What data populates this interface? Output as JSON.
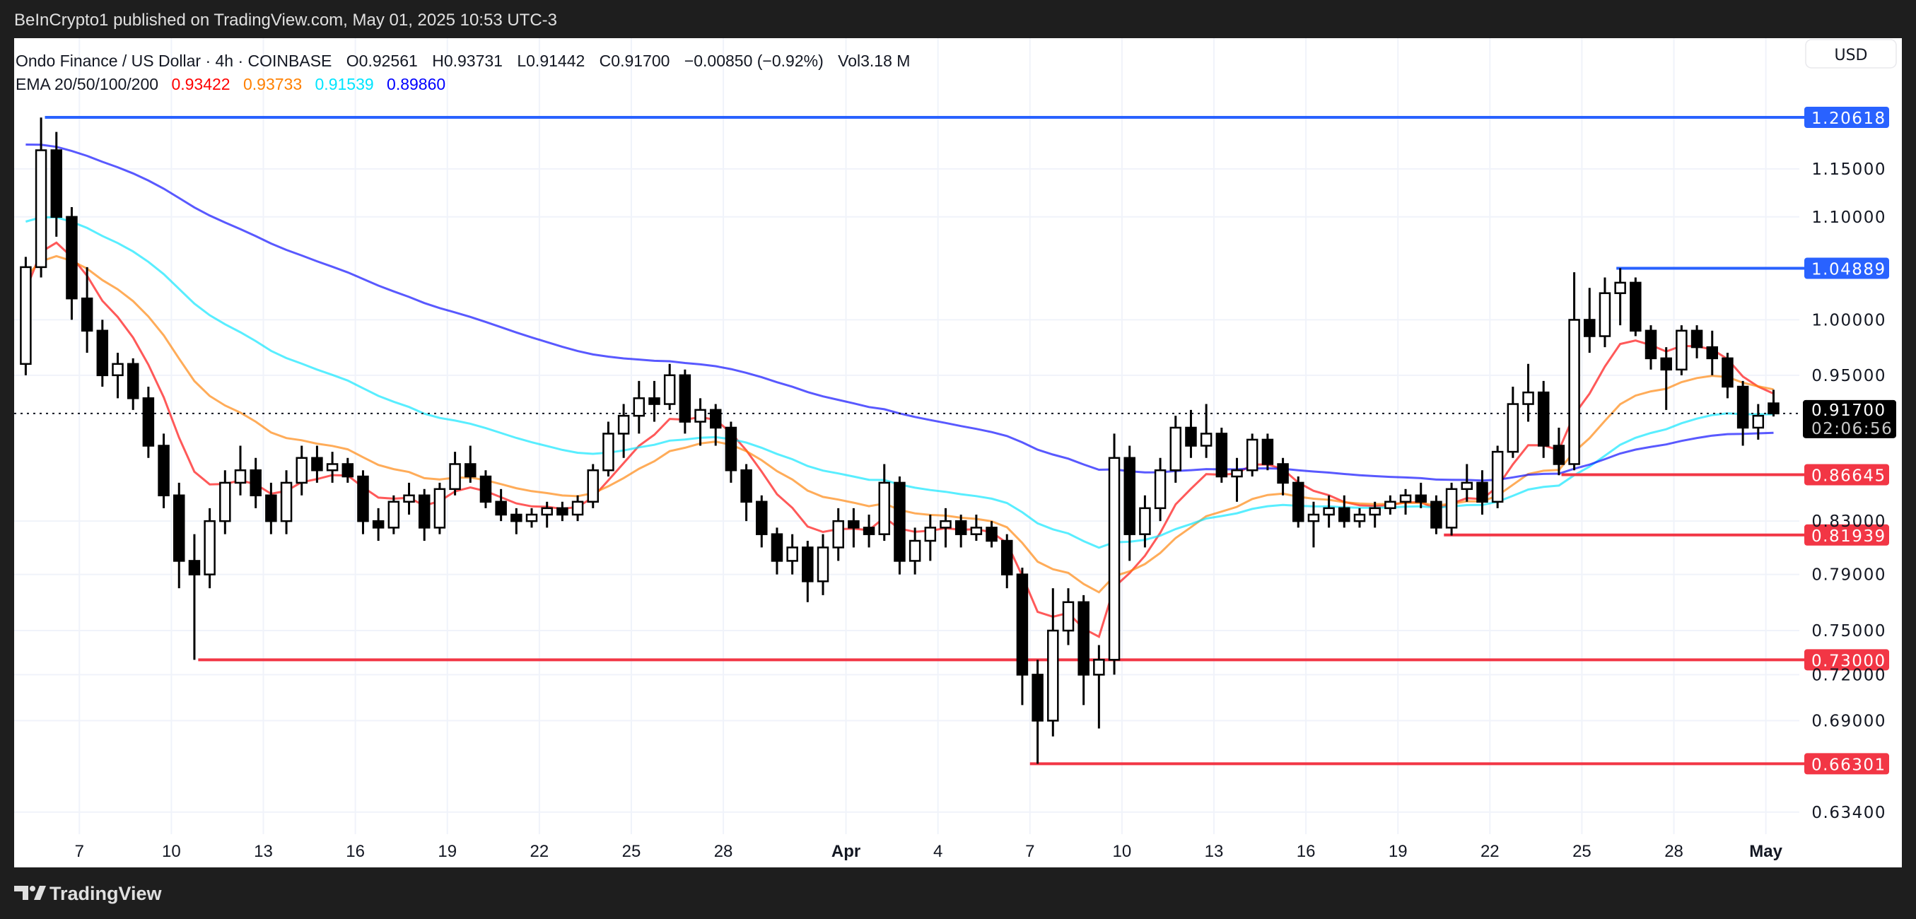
{
  "top_bar": {
    "published": "BeInCrypto1 published on TradingView.com, May 01, 2025 10:53 UTC-3"
  },
  "legend": {
    "symbol": "Ondo Finance / US Dollar · 4h · COINBASE",
    "open": "O0.92561",
    "high": "H0.93731",
    "low": "L0.91442",
    "close": "C0.91700",
    "change": "−0.00850 (−0.92%)",
    "volume": "Vol3.18 M",
    "ema_label": "EMA 20/50/100/200",
    "ema_values": [
      "0.93422",
      "0.93733",
      "0.91539",
      "0.89860"
    ]
  },
  "currency_button": "USD",
  "footer": {
    "brand": "TradingView"
  },
  "current_price": {
    "price": "0.91700",
    "countdown": "02:06:56"
  },
  "colors": {
    "up_body": "#ffffff",
    "down_body": "#000000",
    "support": "#f23645",
    "resistance": "#2962ff",
    "grid": "#f0f3fa"
  },
  "chart_data": {
    "type": "candlestick",
    "scale": "log",
    "grid": true,
    "timeframe": "4h",
    "ylim": [
      0.634,
      1.20618
    ],
    "start_date": "2025-03-05",
    "bar_interval_hours": 12,
    "y_ticks": [
      "1.15000",
      "1.10000",
      "1.00000",
      "0.95000",
      "0.83000",
      "0.79000",
      "0.75000",
      "0.72000",
      "0.69000",
      "0.63400"
    ],
    "x_ticks": [
      {
        "label": "7",
        "date": "2025-03-07"
      },
      {
        "label": "10",
        "date": "2025-03-10"
      },
      {
        "label": "13",
        "date": "2025-03-13"
      },
      {
        "label": "16",
        "date": "2025-03-16"
      },
      {
        "label": "19",
        "date": "2025-03-19"
      },
      {
        "label": "22",
        "date": "2025-03-22"
      },
      {
        "label": "25",
        "date": "2025-03-25"
      },
      {
        "label": "28",
        "date": "2025-03-28"
      },
      {
        "label": "Apr",
        "date": "2025-04-01"
      },
      {
        "label": "4",
        "date": "2025-04-04"
      },
      {
        "label": "7",
        "date": "2025-04-07"
      },
      {
        "label": "10",
        "date": "2025-04-10"
      },
      {
        "label": "13",
        "date": "2025-04-13"
      },
      {
        "label": "16",
        "date": "2025-04-16"
      },
      {
        "label": "19",
        "date": "2025-04-19"
      },
      {
        "label": "22",
        "date": "2025-04-22"
      },
      {
        "label": "25",
        "date": "2025-04-25"
      },
      {
        "label": "28",
        "date": "2025-04-28"
      },
      {
        "label": "May",
        "date": "2025-05-01"
      }
    ],
    "ohlc": [
      [
        0.96,
        1.06,
        0.95,
        1.05
      ],
      [
        1.05,
        1.206,
        1.04,
        1.17
      ],
      [
        1.17,
        1.19,
        1.08,
        1.1
      ],
      [
        1.1,
        1.11,
        1.0,
        1.02
      ],
      [
        1.02,
        1.05,
        0.97,
        0.99
      ],
      [
        0.99,
        1.0,
        0.94,
        0.95
      ],
      [
        0.95,
        0.97,
        0.93,
        0.96
      ],
      [
        0.96,
        0.965,
        0.92,
        0.93
      ],
      [
        0.93,
        0.94,
        0.88,
        0.89
      ],
      [
        0.89,
        0.9,
        0.84,
        0.85
      ],
      [
        0.85,
        0.86,
        0.78,
        0.8
      ],
      [
        0.8,
        0.82,
        0.73,
        0.79
      ],
      [
        0.79,
        0.84,
        0.78,
        0.83
      ],
      [
        0.83,
        0.87,
        0.82,
        0.86
      ],
      [
        0.86,
        0.89,
        0.85,
        0.87
      ],
      [
        0.87,
        0.88,
        0.84,
        0.85
      ],
      [
        0.85,
        0.86,
        0.82,
        0.83
      ],
      [
        0.83,
        0.87,
        0.82,
        0.86
      ],
      [
        0.86,
        0.89,
        0.85,
        0.88
      ],
      [
        0.88,
        0.89,
        0.86,
        0.87
      ],
      [
        0.87,
        0.885,
        0.86,
        0.875
      ],
      [
        0.875,
        0.88,
        0.86,
        0.865
      ],
      [
        0.865,
        0.87,
        0.82,
        0.83
      ],
      [
        0.83,
        0.84,
        0.815,
        0.825
      ],
      [
        0.825,
        0.85,
        0.82,
        0.845
      ],
      [
        0.845,
        0.86,
        0.835,
        0.85
      ],
      [
        0.85,
        0.855,
        0.815,
        0.825
      ],
      [
        0.825,
        0.86,
        0.82,
        0.855
      ],
      [
        0.855,
        0.885,
        0.85,
        0.875
      ],
      [
        0.875,
        0.89,
        0.86,
        0.865
      ],
      [
        0.865,
        0.87,
        0.84,
        0.845
      ],
      [
        0.845,
        0.855,
        0.83,
        0.835
      ],
      [
        0.835,
        0.84,
        0.82,
        0.83
      ],
      [
        0.83,
        0.84,
        0.825,
        0.835
      ],
      [
        0.835,
        0.845,
        0.825,
        0.84
      ],
      [
        0.84,
        0.845,
        0.83,
        0.835
      ],
      [
        0.835,
        0.85,
        0.83,
        0.845
      ],
      [
        0.845,
        0.875,
        0.84,
        0.87
      ],
      [
        0.87,
        0.91,
        0.865,
        0.9
      ],
      [
        0.9,
        0.925,
        0.88,
        0.915
      ],
      [
        0.915,
        0.945,
        0.9,
        0.93
      ],
      [
        0.93,
        0.945,
        0.91,
        0.925
      ],
      [
        0.925,
        0.96,
        0.92,
        0.95
      ],
      [
        0.95,
        0.955,
        0.9,
        0.91
      ],
      [
        0.91,
        0.93,
        0.89,
        0.92
      ],
      [
        0.92,
        0.925,
        0.89,
        0.905
      ],
      [
        0.905,
        0.91,
        0.86,
        0.87
      ],
      [
        0.87,
        0.875,
        0.83,
        0.845
      ],
      [
        0.845,
        0.85,
        0.81,
        0.82
      ],
      [
        0.82,
        0.825,
        0.79,
        0.8
      ],
      [
        0.8,
        0.82,
        0.79,
        0.81
      ],
      [
        0.81,
        0.815,
        0.77,
        0.785
      ],
      [
        0.785,
        0.82,
        0.775,
        0.81
      ],
      [
        0.81,
        0.84,
        0.8,
        0.83
      ],
      [
        0.83,
        0.84,
        0.81,
        0.825
      ],
      [
        0.825,
        0.835,
        0.81,
        0.82
      ],
      [
        0.82,
        0.875,
        0.815,
        0.86
      ],
      [
        0.86,
        0.865,
        0.79,
        0.8
      ],
      [
        0.8,
        0.825,
        0.79,
        0.815
      ],
      [
        0.815,
        0.835,
        0.8,
        0.825
      ],
      [
        0.825,
        0.84,
        0.81,
        0.83
      ],
      [
        0.83,
        0.835,
        0.81,
        0.82
      ],
      [
        0.82,
        0.835,
        0.815,
        0.825
      ],
      [
        0.825,
        0.83,
        0.81,
        0.815
      ],
      [
        0.815,
        0.82,
        0.78,
        0.79
      ],
      [
        0.79,
        0.795,
        0.7,
        0.72
      ],
      [
        0.72,
        0.73,
        0.663,
        0.69
      ],
      [
        0.69,
        0.78,
        0.68,
        0.75
      ],
      [
        0.75,
        0.78,
        0.74,
        0.77
      ],
      [
        0.77,
        0.775,
        0.7,
        0.72
      ],
      [
        0.72,
        0.74,
        0.685,
        0.73
      ],
      [
        0.73,
        0.9,
        0.72,
        0.88
      ],
      [
        0.88,
        0.89,
        0.8,
        0.82
      ],
      [
        0.82,
        0.85,
        0.81,
        0.84
      ],
      [
        0.84,
        0.88,
        0.83,
        0.87
      ],
      [
        0.87,
        0.915,
        0.86,
        0.905
      ],
      [
        0.905,
        0.92,
        0.88,
        0.89
      ],
      [
        0.89,
        0.925,
        0.88,
        0.9
      ],
      [
        0.9,
        0.905,
        0.86,
        0.865
      ],
      [
        0.865,
        0.88,
        0.845,
        0.87
      ],
      [
        0.87,
        0.9,
        0.865,
        0.895
      ],
      [
        0.895,
        0.9,
        0.87,
        0.875
      ],
      [
        0.875,
        0.88,
        0.85,
        0.86
      ],
      [
        0.86,
        0.865,
        0.825,
        0.83
      ],
      [
        0.83,
        0.845,
        0.81,
        0.835
      ],
      [
        0.835,
        0.85,
        0.825,
        0.84
      ],
      [
        0.84,
        0.85,
        0.825,
        0.83
      ],
      [
        0.83,
        0.84,
        0.825,
        0.835
      ],
      [
        0.835,
        0.845,
        0.825,
        0.84
      ],
      [
        0.84,
        0.85,
        0.835,
        0.845
      ],
      [
        0.845,
        0.855,
        0.835,
        0.85
      ],
      [
        0.85,
        0.86,
        0.84,
        0.845
      ],
      [
        0.845,
        0.85,
        0.82,
        0.825
      ],
      [
        0.825,
        0.86,
        0.819,
        0.855
      ],
      [
        0.855,
        0.875,
        0.845,
        0.86
      ],
      [
        0.86,
        0.87,
        0.835,
        0.845
      ],
      [
        0.845,
        0.89,
        0.84,
        0.885
      ],
      [
        0.885,
        0.94,
        0.88,
        0.925
      ],
      [
        0.925,
        0.96,
        0.91,
        0.935
      ],
      [
        0.935,
        0.945,
        0.88,
        0.89
      ],
      [
        0.89,
        0.905,
        0.866,
        0.875
      ],
      [
        0.875,
        1.045,
        0.87,
        1.0
      ],
      [
        1.0,
        1.03,
        0.97,
        0.985
      ],
      [
        0.985,
        1.04,
        0.975,
        1.025
      ],
      [
        1.025,
        1.049,
        0.995,
        1.035
      ],
      [
        1.035,
        1.04,
        0.985,
        0.99
      ],
      [
        0.99,
        0.995,
        0.955,
        0.965
      ],
      [
        0.965,
        0.975,
        0.92,
        0.955
      ],
      [
        0.955,
        0.995,
        0.95,
        0.99
      ],
      [
        0.99,
        0.995,
        0.965,
        0.975
      ],
      [
        0.975,
        0.99,
        0.95,
        0.965
      ],
      [
        0.965,
        0.97,
        0.93,
        0.94
      ],
      [
        0.94,
        0.945,
        0.89,
        0.905
      ],
      [
        0.905,
        0.925,
        0.895,
        0.915
      ],
      [
        0.92561,
        0.93731,
        0.91442,
        0.917
      ]
    ],
    "ema_series": [
      {
        "name": "EMA 20",
        "period": 20,
        "color": "#ff0000",
        "start": 1.02
      },
      {
        "name": "EMA 50",
        "period": 50,
        "color": "#ff8000",
        "start": 1.04
      },
      {
        "name": "EMA 100",
        "period": 100,
        "color": "#00e5ff",
        "start": 1.098
      },
      {
        "name": "EMA 200",
        "period": 200,
        "color": "#0000ff",
        "start": 1.18
      }
    ],
    "levels": [
      {
        "price": 1.20618,
        "label": "1.20618",
        "kind": "resistance",
        "from": "2025-03-05T21:00"
      },
      {
        "price": 1.04889,
        "label": "1.04889",
        "kind": "resistance",
        "from": "2025-04-26T03:00"
      },
      {
        "price": 0.86645,
        "label": "0.86645",
        "kind": "support",
        "from": "2025-04-24T08:00"
      },
      {
        "price": 0.81939,
        "label": "0.81939",
        "kind": "support",
        "from": "2025-04-20T12:00"
      },
      {
        "price": 0.73,
        "label": "0.73000",
        "kind": "support",
        "from": "2025-03-10T21:00"
      },
      {
        "price": 0.66301,
        "label": "0.66301",
        "kind": "support",
        "from": "2025-04-07T00:00"
      }
    ],
    "last_price": 0.917
  }
}
